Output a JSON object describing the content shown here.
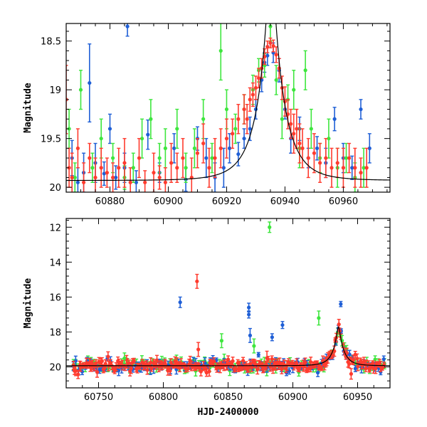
{
  "chart_data": [
    {
      "type": "scatter",
      "name": "zoom-panel",
      "xlim": [
        60865,
        60976
      ],
      "ylim": [
        20.05,
        18.32
      ],
      "xticks": [
        60880,
        60900,
        60920,
        60940,
        60960
      ],
      "yticks": [
        18.5,
        19,
        19.5,
        20
      ],
      "ytick_labels": [
        "18.5",
        "19",
        "19.5",
        "20"
      ],
      "xlabel": "",
      "ylabel": "Magnitude",
      "model": {
        "t0": 60935.2,
        "tE": 9.0,
        "u0": 0.13,
        "base": 19.93
      },
      "series": [
        {
          "name": "blue",
          "color": "#1f5fd6",
          "points": [
            [
              60867,
              19.7,
              0.18
            ],
            [
              60869,
              19.95,
              0.15
            ],
            [
              60871,
              19.85,
              0.2
            ],
            [
              60873,
              18.93,
              0.4
            ],
            [
              60875,
              19.75,
              0.2
            ],
            [
              60878,
              19.86,
              0.12
            ],
            [
              60880,
              19.4,
              0.15
            ],
            [
              60882,
              19.9,
              0.12
            ],
            [
              60885,
              19.8,
              0.15
            ],
            [
              60886,
              18.35,
              0.1
            ],
            [
              60889,
              19.95,
              0.12
            ],
            [
              60893,
              19.46,
              0.15
            ],
            [
              60897,
              19.85,
              0.1
            ],
            [
              60902,
              19.6,
              0.15
            ],
            [
              60906,
              19.92,
              0.12
            ],
            [
              60910,
              19.5,
              0.12
            ],
            [
              60913,
              19.7,
              0.2
            ],
            [
              60916,
              19.9,
              0.15
            ],
            [
              60919,
              19.8,
              0.2
            ],
            [
              60921,
              19.6,
              0.15
            ],
            [
              60924,
              19.66,
              0.12
            ],
            [
              60926,
              19.5,
              0.1
            ],
            [
              60928,
              19.4,
              0.12
            ],
            [
              60930,
              19.2,
              0.1
            ],
            [
              60932,
              18.9,
              0.12
            ],
            [
              60933,
              18.72,
              0.1
            ],
            [
              60934,
              18.65,
              0.1
            ],
            [
              60936,
              18.62,
              0.1
            ],
            [
              60938,
              18.8,
              0.12
            ],
            [
              60940,
              19.2,
              0.1
            ],
            [
              60942,
              19.5,
              0.15
            ],
            [
              60945,
              19.4,
              0.12
            ],
            [
              60948,
              19.7,
              0.1
            ],
            [
              60951,
              19.6,
              0.12
            ],
            [
              60954,
              19.75,
              0.15
            ],
            [
              60957,
              19.3,
              0.12
            ],
            [
              60960,
              19.7,
              0.15
            ],
            [
              60963,
              19.8,
              0.12
            ],
            [
              60966,
              19.2,
              0.1
            ],
            [
              60969,
              19.6,
              0.15
            ]
          ]
        },
        {
          "name": "green",
          "color": "#3ee63e",
          "points": [
            [
              60866,
              19.4,
              0.2
            ],
            [
              60868,
              19.9,
              0.15
            ],
            [
              60870,
              19.0,
              0.2
            ],
            [
              60874,
              19.8,
              0.15
            ],
            [
              60877,
              19.5,
              0.2
            ],
            [
              60881,
              19.7,
              0.15
            ],
            [
              60885,
              19.9,
              0.12
            ],
            [
              60888,
              19.8,
              0.15
            ],
            [
              60891,
              19.5,
              0.2
            ],
            [
              60894,
              19.3,
              0.2
            ],
            [
              60897,
              19.7,
              0.15
            ],
            [
              60899,
              19.6,
              0.2
            ],
            [
              60903,
              19.4,
              0.2
            ],
            [
              60906,
              19.8,
              0.15
            ],
            [
              60909,
              19.6,
              0.2
            ],
            [
              60912,
              19.3,
              0.2
            ],
            [
              60915,
              19.7,
              0.15
            ],
            [
              60918,
              18.6,
              0.3
            ],
            [
              60920,
              19.2,
              0.2
            ],
            [
              60923,
              19.4,
              0.15
            ],
            [
              60926,
              19.2,
              0.15
            ],
            [
              60929,
              19.0,
              0.15
            ],
            [
              60931,
              18.8,
              0.12
            ],
            [
              60933,
              18.75,
              0.12
            ],
            [
              60935,
              18.35,
              0.15
            ],
            [
              60937,
              18.9,
              0.15
            ],
            [
              60939,
              19.3,
              0.2
            ],
            [
              60941,
              19.1,
              0.15
            ],
            [
              60943,
              19.0,
              0.2
            ],
            [
              60945,
              19.6,
              0.2
            ],
            [
              60947,
              18.8,
              0.2
            ],
            [
              60949,
              19.4,
              0.2
            ],
            [
              60952,
              19.7,
              0.15
            ],
            [
              60955,
              19.5,
              0.2
            ],
            [
              60958,
              19.8,
              0.2
            ],
            [
              60961,
              19.7,
              0.15
            ],
            [
              60964,
              19.9,
              0.15
            ],
            [
              60967,
              19.8,
              0.2
            ]
          ]
        },
        {
          "name": "red",
          "color": "#ff3b2e",
          "points": [
            [
              60865,
              19.1,
              0.35
            ],
            [
              60866,
              19.8,
              0.2
            ],
            [
              60867,
              19.9,
              0.25
            ],
            [
              60869,
              19.6,
              0.2
            ],
            [
              60871,
              19.95,
              0.2
            ],
            [
              60873,
              19.7,
              0.15
            ],
            [
              60875,
              19.9,
              0.2
            ],
            [
              60877,
              19.8,
              0.2
            ],
            [
              60879,
              19.85,
              0.15
            ],
            [
              60881,
              19.9,
              0.15
            ],
            [
              60883,
              19.8,
              0.2
            ],
            [
              60885,
              19.75,
              0.25
            ],
            [
              60887,
              19.95,
              0.15
            ],
            [
              60890,
              19.7,
              0.2
            ],
            [
              60892,
              19.95,
              0.12
            ],
            [
              60895,
              19.85,
              0.2
            ],
            [
              60897,
              19.9,
              0.12
            ],
            [
              60899,
              19.95,
              0.15
            ],
            [
              60901,
              19.75,
              0.2
            ],
            [
              60903,
              19.8,
              0.15
            ],
            [
              60905,
              19.7,
              0.2
            ],
            [
              60908,
              19.9,
              0.2
            ],
            [
              60910,
              19.65,
              0.15
            ],
            [
              60912,
              19.55,
              0.2
            ],
            [
              60914,
              19.8,
              0.2
            ],
            [
              60916,
              19.7,
              0.2
            ],
            [
              60918,
              19.6,
              0.2
            ],
            [
              60920,
              19.5,
              0.2
            ],
            [
              60922,
              19.45,
              0.15
            ],
            [
              60924,
              19.3,
              0.15
            ],
            [
              60926,
              19.2,
              0.15
            ],
            [
              60927,
              19.3,
              0.15
            ],
            [
              60928,
              19.1,
              0.12
            ],
            [
              60929,
              19.05,
              0.12
            ],
            [
              60930,
              18.98,
              0.12
            ],
            [
              60931,
              18.88,
              0.1
            ],
            [
              60932,
              18.78,
              0.1
            ],
            [
              60933,
              18.66,
              0.08
            ],
            [
              60934,
              18.56,
              0.06
            ],
            [
              60935,
              18.52,
              0.05
            ],
            [
              60936,
              18.55,
              0.06
            ],
            [
              60937,
              18.64,
              0.08
            ],
            [
              60938,
              18.78,
              0.1
            ],
            [
              60939,
              18.98,
              0.12
            ],
            [
              60940,
              19.12,
              0.15
            ],
            [
              60941,
              19.25,
              0.15
            ],
            [
              60942,
              19.35,
              0.15
            ],
            [
              60943,
              19.45,
              0.2
            ],
            [
              60944,
              19.4,
              0.2
            ],
            [
              60945,
              19.55,
              0.2
            ],
            [
              60946,
              19.6,
              0.2
            ],
            [
              60948,
              19.7,
              0.2
            ],
            [
              60950,
              19.65,
              0.2
            ],
            [
              60952,
              19.75,
              0.2
            ],
            [
              60954,
              19.7,
              0.2
            ],
            [
              60956,
              19.8,
              0.2
            ],
            [
              60958,
              19.75,
              0.15
            ],
            [
              60960,
              19.8,
              0.2
            ],
            [
              60962,
              19.7,
              0.15
            ],
            [
              60964,
              19.8,
              0.2
            ],
            [
              60966,
              19.85,
              0.15
            ],
            [
              60968,
              19.8,
              0.2
            ]
          ]
        }
      ]
    },
    {
      "type": "scatter",
      "name": "full-panel",
      "xlim": [
        60725,
        60975
      ],
      "ylim": [
        21.2,
        11.5
      ],
      "xticks": [
        60750,
        60800,
        60850,
        60900,
        60950
      ],
      "yticks": [
        12,
        14,
        16,
        18,
        20
      ],
      "ytick_labels": [
        "12",
        "14",
        "16",
        "18",
        "20"
      ],
      "xlabel": "HJD-2400000",
      "ylabel": "Magnitude",
      "outliers": [
        {
          "color": "#3ee63e",
          "points": [
            [
              60882,
              12.0,
              0.3
            ],
            [
              60770,
              19.5,
              0.3
            ],
            [
              60845,
              18.5,
              0.4
            ],
            [
              60920,
              17.2,
              0.4
            ],
            [
              60938,
              18.5,
              0.3
            ],
            [
              60870,
              18.8,
              0.4
            ]
          ]
        },
        {
          "color": "#1f5fd6",
          "points": [
            [
              60813,
              16.3,
              0.3
            ],
            [
              60866,
              16.6,
              0.25
            ],
            [
              60866,
              17.0,
              0.2
            ],
            [
              60884,
              18.3,
              0.2
            ],
            [
              60892,
              17.6,
              0.2
            ],
            [
              60937,
              16.4,
              0.15
            ],
            [
              60867,
              18.2,
              0.4
            ]
          ]
        },
        {
          "color": "#ff3b2e",
          "points": [
            [
              60826,
              15.1,
              0.4
            ],
            [
              60827,
              19.0,
              0.4
            ],
            [
              60880,
              19.5,
              0.4
            ],
            [
              60945,
              20.4,
              0.3
            ]
          ]
        }
      ],
      "model": {
        "t0": 60935.2,
        "tE": 9.0,
        "u0": 0.13,
        "base": 19.93
      }
    }
  ]
}
